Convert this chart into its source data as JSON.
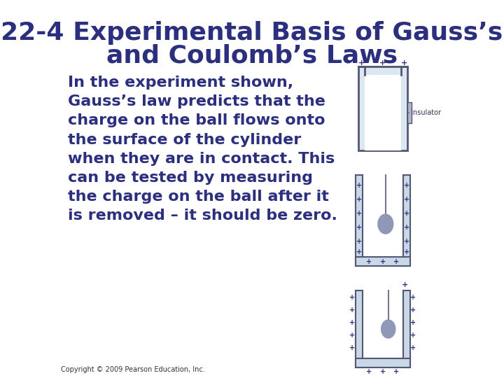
{
  "title_line1": "22-4 Experimental Basis of Gauss’s",
  "title_line2": "and Coulomb’s Laws",
  "title_color": "#2b2f7e",
  "title_fontsize": 26,
  "body_text": "In the experiment shown,\nGauss’s law predicts that the\ncharge on the ball flows onto\nthe surface of the cylinder\nwhen they are in contact. This\ncan be tested by measuring\nthe charge on the ball after it\nis removed – it should be zero.",
  "body_color": "#2b2f7e",
  "body_fontsize": 16,
  "copyright_text": "Copyright © 2009 Pearson Education, Inc.",
  "copyright_color": "#333333",
  "copyright_fontsize": 7,
  "background_color": "#ffffff",
  "diagram_color_cylinder": "#c8d8e8",
  "diagram_color_border": "#555577",
  "diagram_color_plus": "#2b2f7e",
  "diagram_color_ball": "#a0a8c8",
  "diagram_color_insulator": "#888899",
  "insulator_label": "Insulator"
}
